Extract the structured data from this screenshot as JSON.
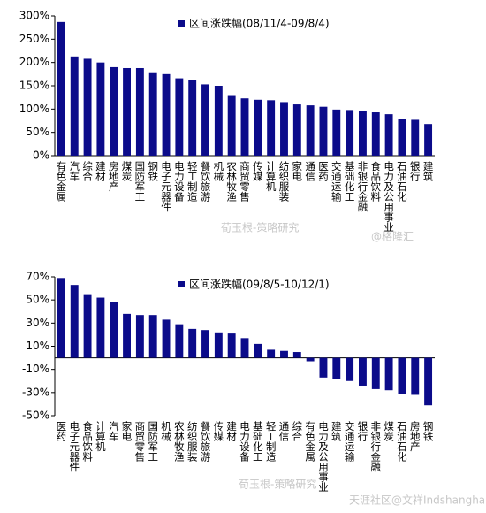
{
  "chart_data": [
    {
      "type": "bar",
      "legend_label": "区间涨跌幅(08/11/4-09/8/4)",
      "legend": "top-right",
      "color": "#0b0b8a",
      "categories": [
        "有色金属",
        "汽车",
        "综合",
        "建材",
        "房地产",
        "煤炭",
        "国防军工",
        "钢铁",
        "电子元器件",
        "电力设备",
        "轻工制造",
        "餐饮旅游",
        "机械",
        "农林牧渔",
        "商贸零售",
        "传媒",
        "计算机",
        "纺织服装",
        "家电",
        "通信",
        "医药",
        "交通运输",
        "基础化工",
        "非银行金融",
        "食品饮料",
        "电力及公用事业",
        "石油石化",
        "银行",
        "建筑"
      ],
      "values": [
        287,
        213,
        208,
        200,
        190,
        188,
        188,
        179,
        175,
        166,
        162,
        153,
        150,
        130,
        123,
        120,
        119,
        115,
        110,
        108,
        105,
        99,
        98,
        96,
        93,
        89,
        79,
        77,
        68
      ],
      "ylim": [
        0,
        300
      ],
      "yticks": [
        {
          "value": 0,
          "label": "0%"
        },
        {
          "value": 50,
          "label": "50%"
        },
        {
          "value": 100,
          "label": "100%"
        },
        {
          "value": 150,
          "label": "150%"
        },
        {
          "value": 200,
          "label": "200%"
        },
        {
          "value": 250,
          "label": "250%"
        },
        {
          "value": 300,
          "label": "300%"
        }
      ],
      "watermarks": [
        "荀玉根-策略研究",
        "@格隆汇"
      ]
    },
    {
      "type": "bar",
      "legend_label": "区间涨跌幅(09/8/5-10/12/1)",
      "legend": "top-right",
      "color": "#0b0b8a",
      "categories": [
        "医药",
        "电子元器件",
        "食品饮料",
        "计算机",
        "汽车",
        "家电",
        "商贸零售",
        "国防军工",
        "机械",
        "农林牧渔",
        "纺织服装",
        "餐饮旅游",
        "传媒",
        "建材",
        "电力设备",
        "基础化工",
        "轻工制造",
        "通信",
        "综合",
        "有色金属",
        "电力及公用事业",
        "建筑",
        "交通运输",
        "银行",
        "非银行金融",
        "煤炭",
        "石油石化",
        "房地产",
        "钢铁"
      ],
      "values": [
        69,
        63,
        55,
        52,
        48,
        38,
        37,
        37,
        33,
        29,
        25,
        24,
        22,
        21,
        17,
        12,
        7,
        6,
        5,
        -3,
        -17,
        -18,
        -20,
        -24,
        -27,
        -28,
        -31,
        -32,
        -41
      ],
      "ylim": [
        -50,
        70
      ],
      "yticks": [
        {
          "value": -50,
          "label": "-50%"
        },
        {
          "value": -30,
          "label": "-30%"
        },
        {
          "value": -10,
          "label": "-10%"
        },
        {
          "value": 10,
          "label": "10%"
        },
        {
          "value": 30,
          "label": "30%"
        },
        {
          "value": 50,
          "label": "50%"
        },
        {
          "value": 70,
          "label": "70%"
        }
      ],
      "watermarks": [
        "荀玉根-策略研究",
        "天涯社区@文祥Indshanghai"
      ]
    }
  ]
}
